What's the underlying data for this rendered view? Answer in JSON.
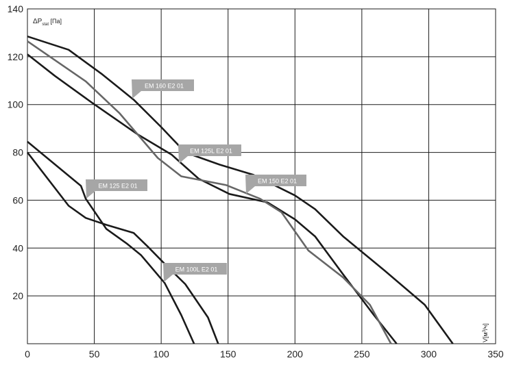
{
  "chart_data": {
    "type": "line",
    "y_label": {
      "main": "ΔP",
      "sub": "stat",
      "unit": " [Па]"
    },
    "x_label": {
      "main": "V[м",
      "sup": "3",
      "unit": "/ч]"
    },
    "xlim": [
      0,
      350
    ],
    "xticks": [
      0,
      50,
      100,
      150,
      200,
      250,
      300,
      350
    ],
    "ylim": [
      0,
      140
    ],
    "yticks": [
      20,
      40,
      60,
      80,
      100,
      120,
      140
    ],
    "grid": true,
    "series": [
      {
        "name": "EM 160 E2 01",
        "color": "#1a1a1a",
        "x": [
          0,
          30.8,
          56,
          79.5,
          100,
          118,
          143.6,
          169,
          200,
          215,
          236,
          267,
          297,
          318
        ],
        "values": [
          128.5,
          122.9,
          112.6,
          102,
          90.6,
          80,
          74.9,
          70.6,
          62,
          56.3,
          44.9,
          30.6,
          16.3,
          0
        ]
      },
      {
        "name": "EM 125L E2 01",
        "color": "#1a1a1a",
        "x": [
          0,
          20.5,
          48.7,
          82,
          107.7,
          128,
          151,
          179.5,
          200,
          215,
          236,
          259,
          276
        ],
        "values": [
          121,
          112,
          100.6,
          87.7,
          79.1,
          69,
          62.6,
          59.1,
          52,
          44.9,
          29,
          12,
          0
        ]
      },
      {
        "name": "EM 150 E2 01",
        "color": "#666666",
        "x": [
          0,
          43.6,
          69,
          97.4,
          115,
          148.7,
          174,
          190,
          210,
          236,
          256,
          271.8
        ],
        "values": [
          126.5,
          109.7,
          96.3,
          77.7,
          70,
          66.3,
          60.6,
          54.9,
          39,
          27.7,
          16.3,
          0
        ]
      },
      {
        "name": "EM 125 E2 01",
        "color": "#1a1a1a",
        "x": [
          0,
          40,
          43.6,
          59,
          74,
          85,
          102.6,
          115,
          124.6
        ],
        "values": [
          84.5,
          66,
          60.6,
          48,
          42,
          37,
          25.4,
          12,
          0
        ]
      },
      {
        "name": "EM 100L E2 01",
        "color": "#1a1a1a",
        "x": [
          0,
          30.8,
          43.6,
          59,
          79.5,
          90,
          102.6,
          118,
          135,
          142.6
        ],
        "values": [
          80,
          57.7,
          52.6,
          49.7,
          46.3,
          40.6,
          33.4,
          24.9,
          11,
          0
        ]
      }
    ]
  }
}
